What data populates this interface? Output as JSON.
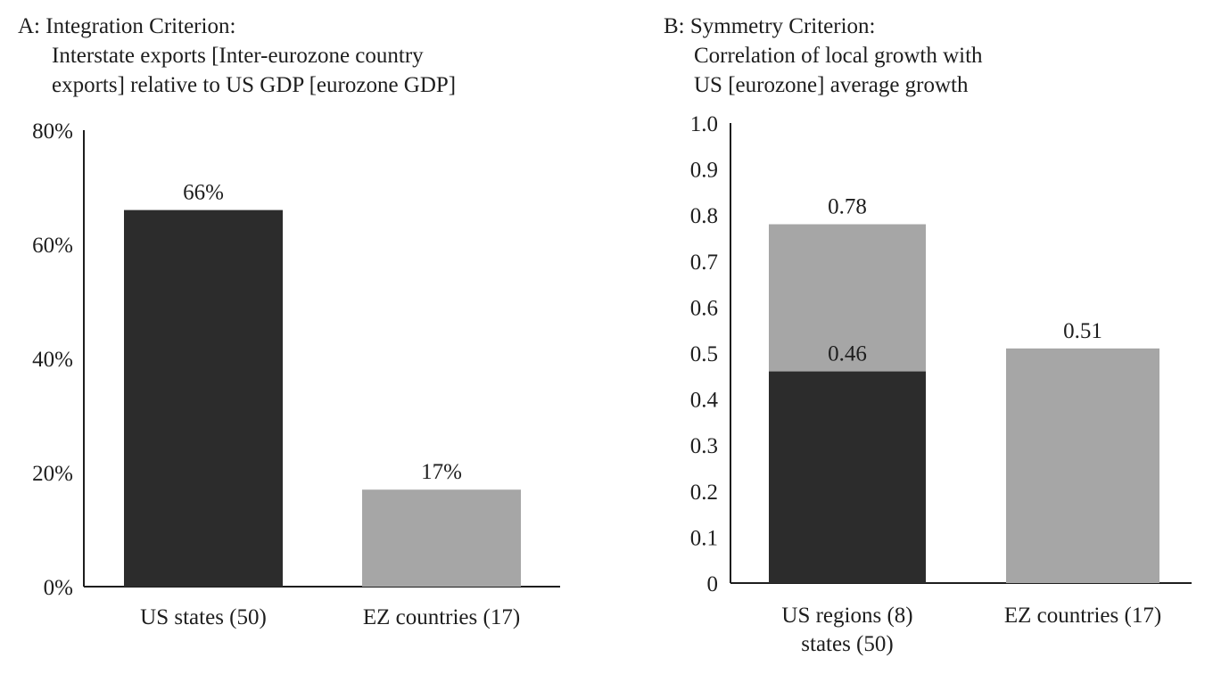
{
  "chart_data": [
    {
      "type": "bar",
      "title": "A: Integration Criterion:",
      "subtitle": [
        "Interstate exports [Inter-eurozone country",
        "exports] relative to US GDP [eurozone GDP]"
      ],
      "categories": [
        "US states (50)",
        "EZ countries (17)"
      ],
      "values": [
        66,
        17
      ],
      "value_labels": [
        "66%",
        "17%"
      ],
      "bar_colors": [
        "#2c2c2c",
        "#a6a6a6"
      ],
      "yticks": [
        "0%",
        "20%",
        "40%",
        "60%",
        "80%"
      ],
      "ylim": [
        0,
        80
      ],
      "grid": false
    },
    {
      "type": "bar",
      "title": "B: Symmetry Criterion:",
      "subtitle": [
        "Correlation of local growth with",
        "US [eurozone] average growth"
      ],
      "categories": [
        [
          "US regions (8)",
          "states (50)"
        ],
        [
          "EZ countries (17)"
        ]
      ],
      "bars": [
        {
          "segments": [
            {
              "value": 0.46,
              "label": "0.46",
              "color": "#2c2c2c"
            },
            {
              "value": 0.78,
              "label": "0.78",
              "color": "#a6a6a6"
            }
          ]
        },
        {
          "segments": [
            {
              "value": 0.51,
              "label": "0.51",
              "color": "#a6a6a6"
            }
          ]
        }
      ],
      "yticks": [
        "0",
        "0.1",
        "0.2",
        "0.3",
        "0.4",
        "0.5",
        "0.6",
        "0.7",
        "0.8",
        "0.9",
        "1.0"
      ],
      "ylim": [
        0,
        1.0
      ],
      "grid": false
    }
  ]
}
